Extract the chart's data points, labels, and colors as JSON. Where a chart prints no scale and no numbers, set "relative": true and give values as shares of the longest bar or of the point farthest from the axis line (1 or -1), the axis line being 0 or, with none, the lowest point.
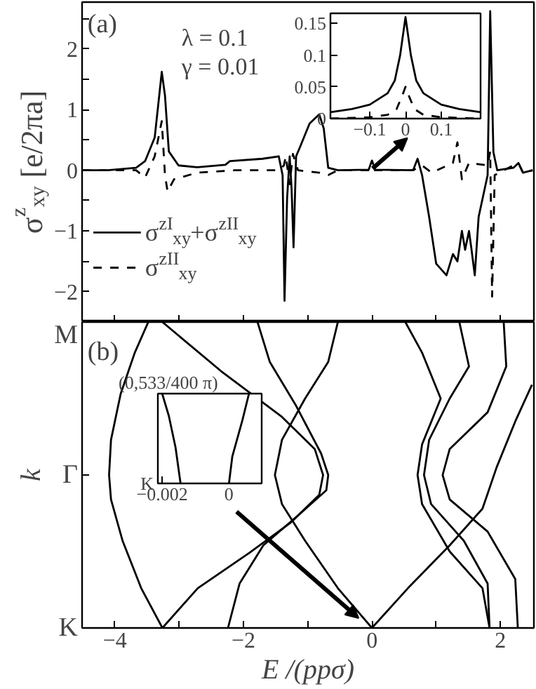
{
  "chart_data": [
    {
      "type": "line",
      "ylabel": "σ$^{z}$$_{xy}$ [e/2πa]",
      "annotations": [
        "(a)",
        "λ = 0.1",
        "γ = 0.01"
      ],
      "xlim": [
        -4.51,
        2.52
      ],
      "ylim": [
        -2.5,
        2.77
      ],
      "xticks": [
        -4,
        {
          "value": -3,
          "label": null
        },
        -2,
        {
          "value": -1,
          "label": null
        },
        0,
        {
          "value": 1,
          "label": null
        },
        2
      ],
      "yticks": [
        -2,
        {
          "value": -1.5,
          "label": null
        },
        -1,
        {
          "value": -0.5,
          "label": null
        },
        0,
        {
          "value": 0.5,
          "label": null
        },
        1,
        {
          "value": 1.5,
          "label": null
        },
        2,
        {
          "value": 2.5,
          "label": null
        }
      ],
      "tick_labels": "y",
      "grid": false,
      "legend": "bottom left",
      "series": [
        {
          "name": "σ$^{zI}$$_{xy}$+σ$^{zII}$$_{xy}$",
          "color": "#000000",
          "line_style": "solid",
          "x": [
            -4.51,
            -4.11,
            -3.67,
            -3.53,
            -3.38,
            -3.27,
            -3.22,
            -3.16,
            -3.01,
            -2.72,
            -2.28,
            -2.21,
            -1.7,
            -1.45,
            -1.39,
            -1.36,
            -1.32,
            -1.28,
            -1.25,
            -1.22,
            -1.18,
            -1.12,
            -0.97,
            -0.82,
            -0.75,
            -0.68,
            -0.53,
            -0.05,
            0,
            0.05,
            0.64,
            0.71,
            0.78,
            0.89,
            1.0,
            1.16,
            1.26,
            1.33,
            1.4,
            1.45,
            1.51,
            1.55,
            1.6,
            1.66,
            1.8,
            1.84,
            1.89,
            1.95,
            2.2,
            2.28,
            2.35,
            2.5
          ],
          "values": [
            0,
            0,
            0.04,
            0.15,
            0.54,
            1.62,
            1.23,
            0.31,
            0.08,
            0.05,
            0.09,
            0.15,
            0.19,
            0.23,
            -0.08,
            -2.15,
            -0.46,
            0.23,
            -0.31,
            -1.27,
            0.23,
            0.38,
            0.77,
            0.92,
            0.69,
            0.04,
            0,
            0.01,
            0.16,
            0.01,
            0,
            0.19,
            -0.08,
            -0.77,
            -1.54,
            -1.73,
            -1.38,
            -1.5,
            -1.0,
            -1.31,
            -1.0,
            -1.31,
            -1.73,
            -0.77,
            -0.08,
            2.62,
            0.3,
            0,
            0.04,
            0.12,
            -0.04,
            0
          ]
        },
        {
          "name": "σ$^{zII}$$_{xy}$",
          "color": "#000000",
          "line_style": "dashed",
          "x": [
            -4.51,
            -3.67,
            -3.53,
            -3.38,
            -3.27,
            -3.22,
            -3.18,
            -3.08,
            -2.72,
            -2.14,
            -1.45,
            -1.37,
            -1.34,
            -1.28,
            -1.23,
            -1.15,
            -0.82,
            -0.68,
            -0.53,
            -0.03,
            0,
            0.03,
            0.64,
            0.78,
            0.93,
            1.26,
            1.33,
            1.4,
            1.51,
            1.8,
            1.84,
            1.87,
            1.91,
            2.2,
            2.28,
            2.35,
            2.5
          ],
          "values": [
            0,
            0,
            -0.12,
            0.23,
            0.81,
            -0.08,
            -0.35,
            -0.15,
            -0.04,
            0,
            0,
            0.08,
            0.23,
            -0.23,
            0.27,
            0,
            -0.04,
            -0.08,
            0,
            0,
            0.05,
            0,
            0,
            0.08,
            -0.04,
            0.12,
            0.46,
            -0.15,
            0.12,
            0.08,
            0.31,
            -2.08,
            -0.08,
            0.08,
            0.12,
            -0.04,
            0
          ]
        }
      ]
    },
    {
      "type": "line",
      "xlim": [
        -0.21,
        0.21
      ],
      "ylim": [
        0,
        0.166
      ],
      "xticks": [
        -0.1,
        0,
        0.1
      ],
      "yticks": [
        0,
        0.05,
        0.1,
        0.15
      ],
      "grid": false,
      "series": [
        {
          "color": "#000000",
          "line_style": "solid",
          "x": [
            -0.21,
            -0.15,
            -0.1,
            -0.05,
            -0.03,
            -0.015,
            0,
            0.015,
            0.03,
            0.05,
            0.1,
            0.15,
            0.21
          ],
          "values": [
            0.01,
            0.015,
            0.022,
            0.04,
            0.06,
            0.1,
            0.16,
            0.1,
            0.06,
            0.04,
            0.022,
            0.015,
            0.01
          ]
        },
        {
          "color": "#000000",
          "line_style": "dashed",
          "x": [
            -0.21,
            -0.1,
            -0.05,
            -0.025,
            -0.01,
            0,
            0.01,
            0.025,
            0.05,
            0.1,
            0.21
          ],
          "values": [
            0,
            0.002,
            0.006,
            0.015,
            0.035,
            0.05,
            0.035,
            0.015,
            0.006,
            0.002,
            0
          ]
        }
      ]
    },
    {
      "type": "line",
      "xlabel": "E /(ppσ)",
      "ylabel": "k",
      "relative": true,
      "annotations": [
        "(b)",
        "K",
        "Γ",
        "M"
      ],
      "xlim": [
        -4.51,
        2.52
      ],
      "xticks": [
        -4,
        {
          "value": -3,
          "label": null
        },
        -2,
        {
          "value": -1,
          "label": null
        },
        0,
        {
          "value": 1,
          "label": null
        },
        2
      ],
      "grid": false,
      "series": [
        {
          "color": "#000000",
          "x": [
            -3.26,
            -3.59,
            -3.88,
            -4.06,
            -4.09,
            -4.06,
            -3.91,
            -3.69,
            -3.48
          ],
          "values": [
            0,
            0.13,
            0.285,
            0.42,
            0.5,
            0.615,
            0.765,
            0.9,
            1
          ]
        },
        {
          "color": "#000000",
          "x": [
            -3.26,
            -2.71,
            -1.91,
            -1.26,
            -0.82,
            -0.76,
            -0.89,
            -1.4,
            -2.35,
            -3.26
          ],
          "values": [
            0,
            0.13,
            0.245,
            0.345,
            0.435,
            0.5,
            0.585,
            0.69,
            0.84,
            1
          ]
        },
        {
          "color": "#000000",
          "x": [
            -2.24,
            -2.06,
            -1.69,
            -1.11,
            -0.71,
            -0.68,
            -0.79,
            -1.19,
            -1.59,
            -1.78
          ],
          "values": [
            0,
            0.145,
            0.27,
            0.375,
            0.45,
            0.5,
            0.57,
            0.73,
            0.87,
            1
          ]
        },
        {
          "color": "#000000",
          "x": [
            0,
            -0.53,
            -1.04,
            -1.4,
            -1.51,
            -1.4,
            -1.04,
            -0.68,
            -0.53
          ],
          "values": [
            0,
            0.13,
            0.285,
            0.405,
            0.5,
            0.615,
            0.75,
            0.87,
            1
          ]
        },
        {
          "color": "#000000",
          "x": [
            0,
            0.56,
            1.21,
            1.72,
            1.94,
            2.23,
            2.49
          ],
          "values": [
            0,
            0.13,
            0.27,
            0.39,
            0.525,
            0.675,
            0.795
          ]
        },
        {
          "color": "#000000",
          "x": [
            1.83,
            1.8,
            1.43,
            0.92,
            0.81,
            0.89,
            1.21,
            1.51,
            1.36
          ],
          "values": [
            0,
            0.145,
            0.285,
            0.405,
            0.5,
            0.615,
            0.75,
            0.855,
            1
          ]
        },
        {
          "color": "#000000",
          "x": [
            1.83,
            1.72,
            1.21,
            0.78,
            0.71,
            0.78,
            1.07,
            0.78,
            0.52
          ],
          "values": [
            0,
            0.13,
            0.25,
            0.405,
            0.5,
            0.6,
            0.75,
            0.9,
            1
          ]
        },
        {
          "color": "#000000",
          "x": [
            2.27,
            2.23,
            1.8,
            1.21,
            1.1,
            1.21,
            1.8,
            2.09,
            2.05
          ],
          "values": [
            0,
            0.16,
            0.315,
            0.42,
            0.5,
            0.585,
            0.705,
            0.855,
            1
          ]
        }
      ]
    },
    {
      "type": "line",
      "relative": true,
      "annotations": [
        "(0,533/400 π)",
        "K"
      ],
      "xlim": [
        -0.00213,
        0.00098
      ],
      "xticks": [
        -0.002,
        0
      ],
      "grid": false,
      "series": [
        {
          "color": "#000000",
          "x": [
            -0.002,
            -0.0018,
            -0.0016,
            -0.00145
          ],
          "values": [
            1,
            0.75,
            0.4,
            0
          ]
        },
        {
          "color": "#000000",
          "x": [
            0.0006,
            0.0004,
            0.0001,
            0
          ],
          "values": [
            1,
            0.7,
            0.3,
            0
          ]
        }
      ]
    }
  ]
}
